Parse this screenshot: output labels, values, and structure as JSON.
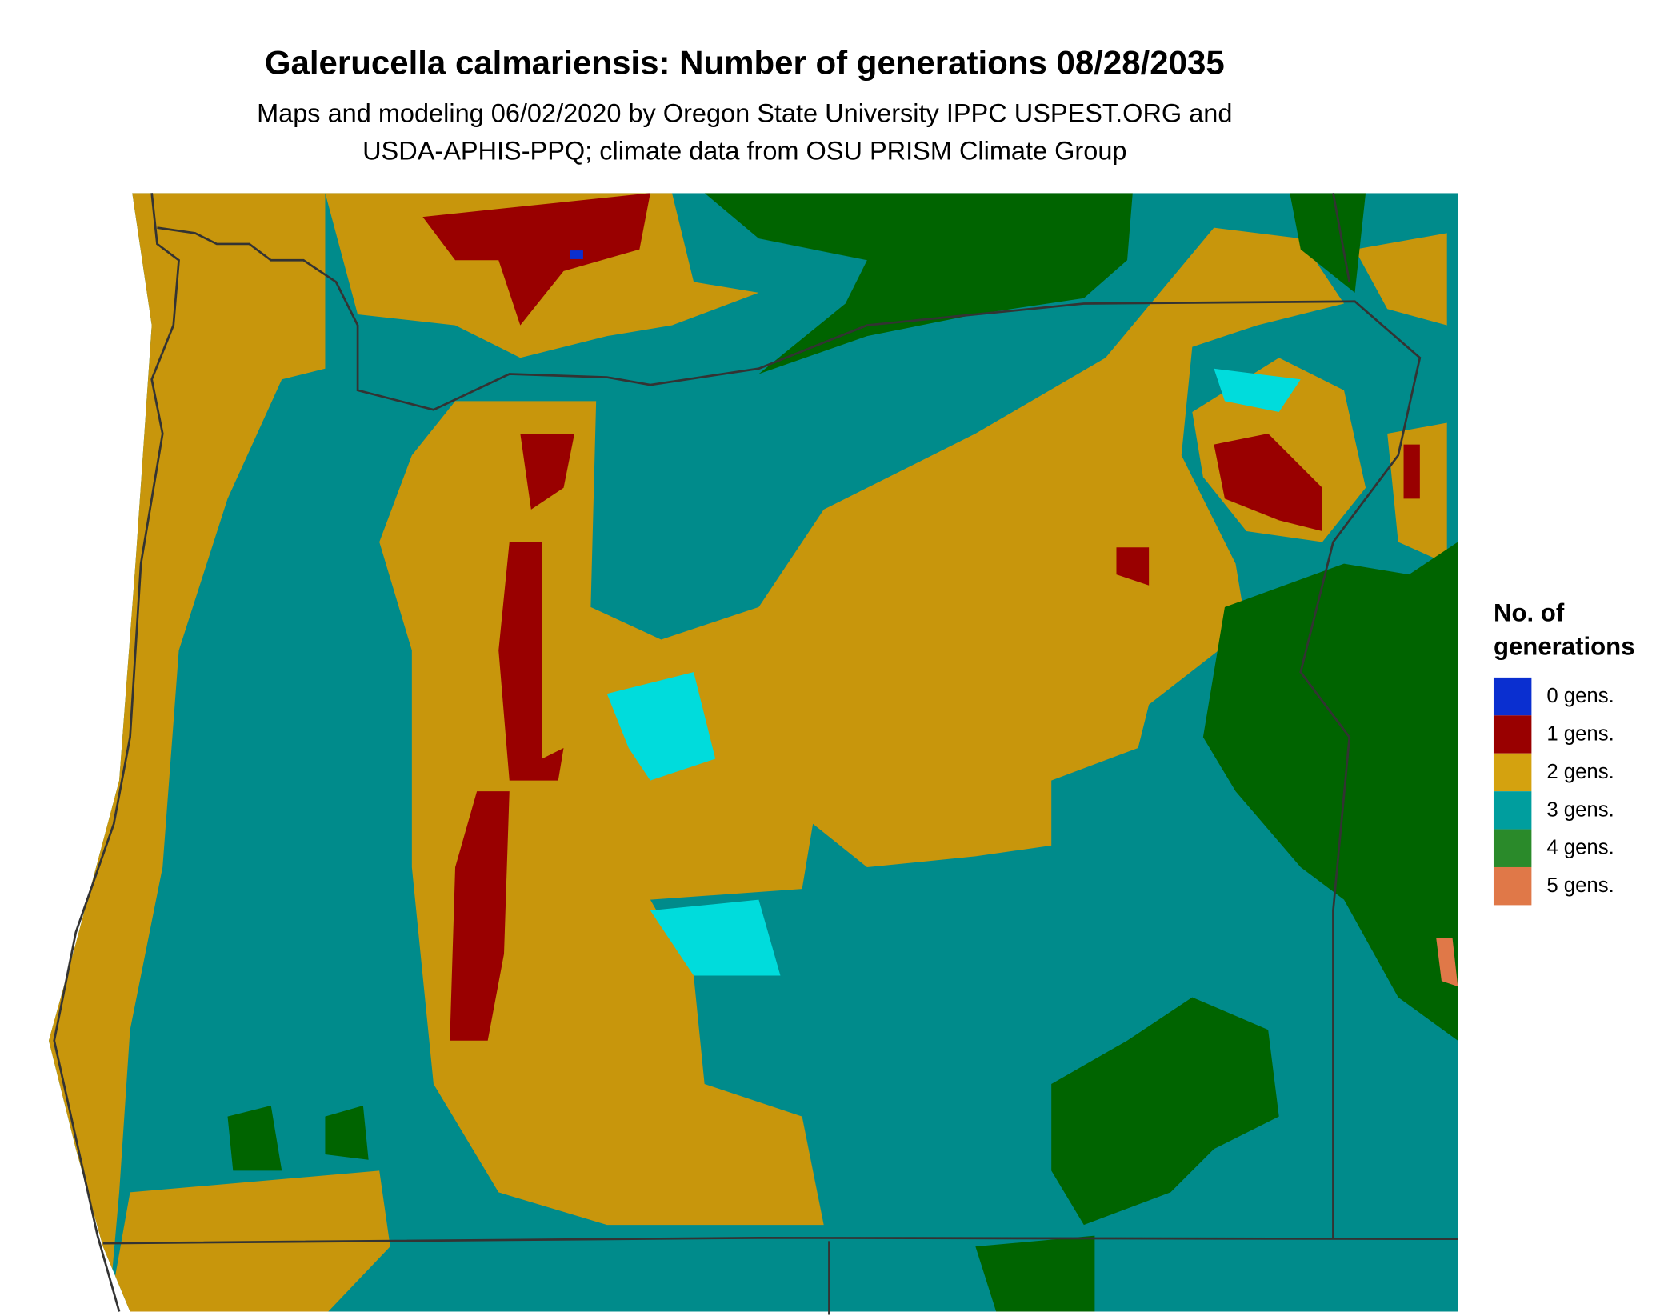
{
  "title": "Galerucella calmariensis: Number of generations 08/28/2035",
  "subtitle": [
    "Maps and modeling 06/02/2020 by Oregon State University IPPC USPEST.ORG and",
    "USDA-APHIS-PPQ; climate data from OSU PRISM Climate Group"
  ],
  "legend": {
    "title": [
      "No. of",
      "generations"
    ],
    "items": [
      {
        "label": "0 gens.",
        "color": "#0a2fd0"
      },
      {
        "label": "1 gens.",
        "color": "#990000"
      },
      {
        "label": "2 gens.",
        "color": "#d4a20f"
      },
      {
        "label": "3 gens.",
        "color": "#009e9e"
      },
      {
        "label": "4 gens.",
        "color": "#2a8a2a"
      },
      {
        "label": "5 gens.",
        "color": "#e07848"
      }
    ]
  }
}
